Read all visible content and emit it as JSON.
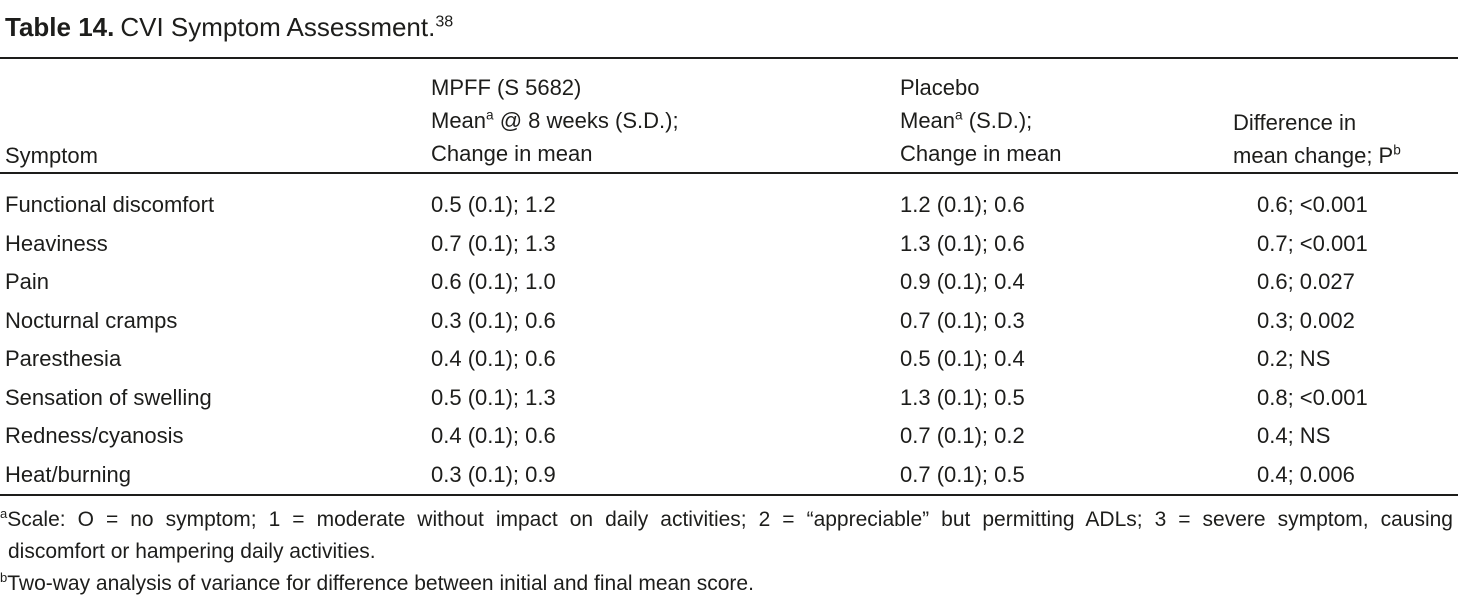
{
  "title": {
    "label": "Table 14.",
    "text": "CVI Symptom Assessment.",
    "superscript": "38"
  },
  "table": {
    "header": {
      "symptom": "Symptom",
      "mpff": {
        "line1": "MPFF (S 5682)",
        "line2_pre": "Mean",
        "line2_sup": "a",
        "line2_post": " @ 8 weeks (S.D.);",
        "line3": "Change in mean"
      },
      "placebo": {
        "line1": "Placebo",
        "line2_pre": "Mean",
        "line2_sup": "a",
        "line2_post": " (S.D.);",
        "line3": "Change in mean"
      },
      "difference": {
        "line1": "Difference in",
        "line2_pre": "mean change; P",
        "line2_sup": "b"
      }
    },
    "rows": [
      {
        "symptom": "Functional discomfort",
        "mpff": "0.5 (0.1); 1.2",
        "placebo": "1.2 (0.1); 0.6",
        "difference": "0.6; <0.001"
      },
      {
        "symptom": "Heaviness",
        "mpff": "0.7 (0.1); 1.3",
        "placebo": "1.3 (0.1); 0.6",
        "difference": "0.7; <0.001"
      },
      {
        "symptom": "Pain",
        "mpff": "0.6 (0.1); 1.0",
        "placebo": "0.9 (0.1); 0.4",
        "difference": "0.6; 0.027"
      },
      {
        "symptom": "Nocturnal cramps",
        "mpff": "0.3 (0.1); 0.6",
        "placebo": "0.7 (0.1); 0.3",
        "difference": "0.3; 0.002"
      },
      {
        "symptom": "Paresthesia",
        "mpff": "0.4 (0.1); 0.6",
        "placebo": "0.5 (0.1); 0.4",
        "difference": "0.2; NS"
      },
      {
        "symptom": "Sensation of swelling",
        "mpff": "0.5 (0.1); 1.3",
        "placebo": "1.3 (0.1); 0.5",
        "difference": "0.8; <0.001"
      },
      {
        "symptom": "Redness/cyanosis",
        "mpff": "0.4 (0.1); 0.6",
        "placebo": "0.7 (0.1); 0.2",
        "difference": "0.4; NS"
      },
      {
        "symptom": "Heat/burning",
        "mpff": "0.3 (0.1); 0.9",
        "placebo": "0.7 (0.1); 0.5",
        "difference": "0.4; 0.006"
      }
    ]
  },
  "footnotes": {
    "a": {
      "marker": "a",
      "line1": "Scale: O = no symptom; 1 = moderate without impact on daily activities; 2 = “appreciable” but permitting ADLs; 3 = severe symptom, causing",
      "line2": "discomfort or hampering daily activities."
    },
    "b": {
      "marker": "b",
      "text": "Two-way analysis of variance for difference between initial and final mean score."
    }
  },
  "colors": {
    "text": "#1d1d1b",
    "rule": "#1d1d1b",
    "background": "#ffffff"
  }
}
